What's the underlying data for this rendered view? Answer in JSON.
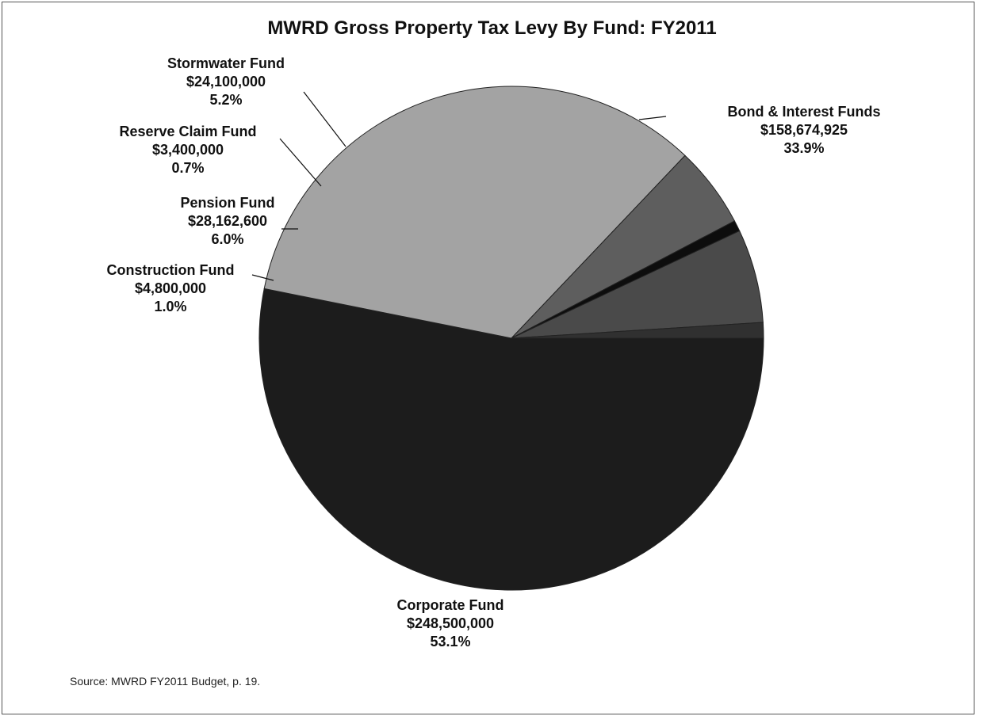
{
  "chart_data": {
    "type": "pie",
    "title": "MWRD Gross Property Tax Levy By Fund: FY2011",
    "slices": [
      {
        "label": "Corporate Fund",
        "amount": "$248,500,000",
        "percent_label": "53.1%",
        "value": 53.1,
        "color": "#1c1c1c"
      },
      {
        "label": "Bond & Interest Funds",
        "amount": "$158,674,925",
        "percent_label": "33.9%",
        "value": 33.9,
        "color": "#a3a3a3"
      },
      {
        "label": "Stormwater Fund",
        "amount": "$24,100,000",
        "percent_label": "5.2%",
        "value": 5.2,
        "color": "#5e5e5e"
      },
      {
        "label": "Reserve Claim Fund",
        "amount": "$3,400,000",
        "percent_label": "0.7%",
        "value": 0.7,
        "color": "#0d0d0d"
      },
      {
        "label": "Pension Fund",
        "amount": "$28,162,600",
        "percent_label": "6.0%",
        "value": 6.0,
        "color": "#4a4a4a"
      },
      {
        "label": "Construction Fund",
        "amount": "$4,800,000",
        "percent_label": "1.0%",
        "value": 1.0,
        "color": "#303030"
      }
    ],
    "legend": "none",
    "source": "Source: MWRD FY2011 Budget, p. 19."
  }
}
